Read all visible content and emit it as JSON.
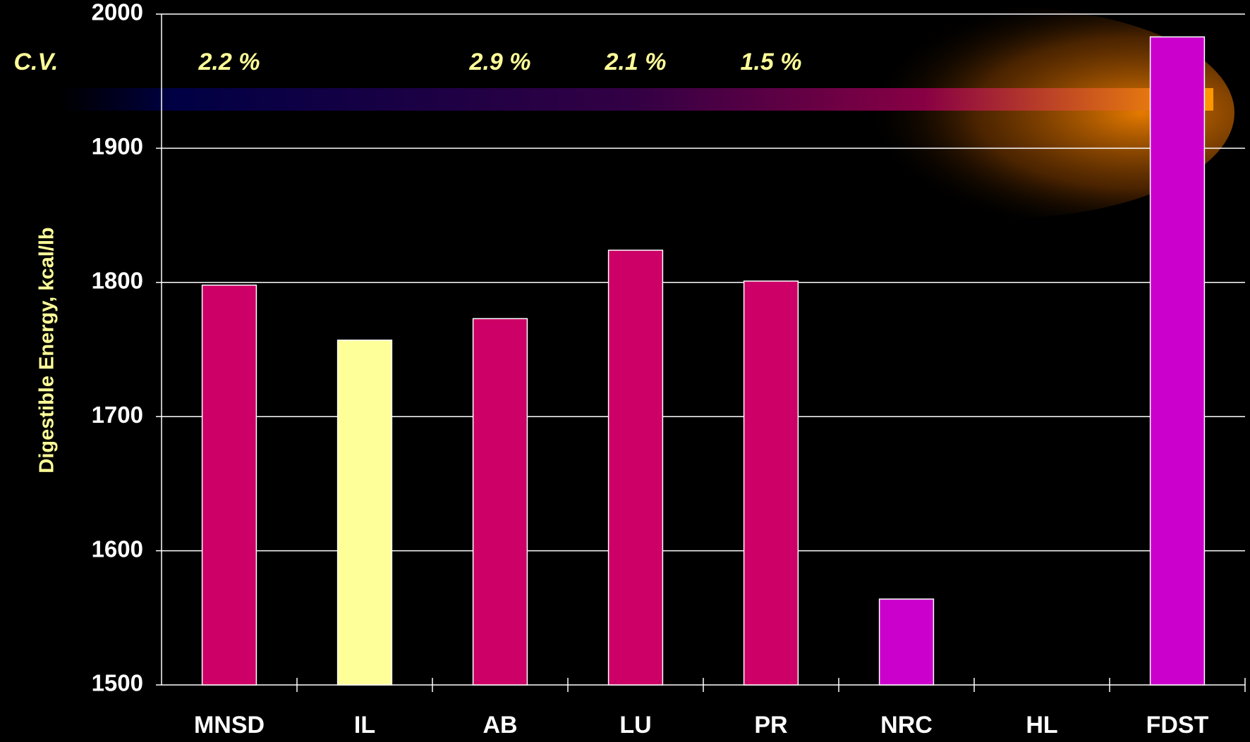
{
  "chart_data": {
    "type": "bar",
    "y_label": "Digestible Energy, kcal/lb",
    "categories": [
      "MNSD",
      "IL",
      "AB",
      "LU",
      "PR",
      "NRC",
      "HL",
      "FDST"
    ],
    "values": [
      1798,
      1757,
      1773,
      1824,
      1801,
      1564,
      null,
      1983
    ],
    "colors": [
      "#cc0066",
      "#ffff99",
      "#cc0066",
      "#cc0066",
      "#cc0066",
      "#cc00cc",
      null,
      "#cc00cc"
    ],
    "ylim": [
      1500,
      2000
    ],
    "yticks": [
      1500,
      1600,
      1700,
      1800,
      1900,
      2000
    ],
    "grid": true,
    "annotation": {
      "label": "C.V.",
      "values": [
        "2.2 %",
        null,
        "2.9 %",
        "2.1 %",
        "1.5 %",
        null,
        null,
        null
      ]
    }
  }
}
